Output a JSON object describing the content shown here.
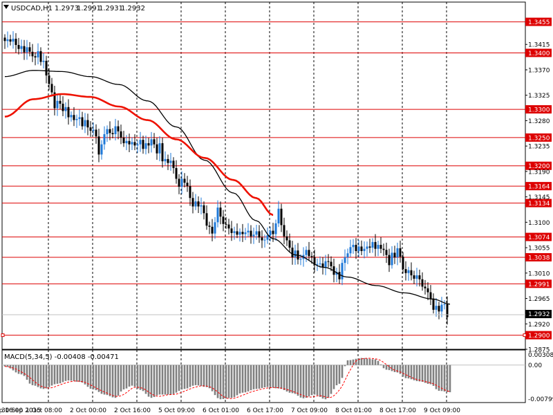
{
  "header": {
    "symbol_label": "USDCAD,H1",
    "ohlc": [
      "1.2973",
      "1.2991",
      "1.2931",
      "1.2932"
    ]
  },
  "colors": {
    "background": "#ffffff",
    "level_line": "#dd0000",
    "ma_fast": "#ee1100",
    "ma_slow": "#000000",
    "candle_up": "#1e78d8",
    "candle_down": "#000000",
    "macd_hist": "#808080",
    "macd_signal": "#ff0000",
    "current_price_bg": "#000000"
  },
  "price_scale": {
    "min": 1.2875,
    "max": 1.349,
    "ticks": [
      "1.3415",
      "1.3370",
      "1.3325",
      "1.3280",
      "1.3235",
      "1.3190",
      "1.3145",
      "1.3100",
      "1.3055",
      "1.3010",
      "1.2965",
      "1.2920",
      "1.2875"
    ]
  },
  "levels": [
    "1.3455",
    "1.3400",
    "1.3300",
    "1.3250",
    "1.3200",
    "1.3164",
    "1.3134",
    "1.3074",
    "1.3038",
    "1.2991",
    "1.2900"
  ],
  "current_price": "1.2932",
  "time_axis": {
    "labels": [
      "30 Sep 2015",
      "30 Sep 16:00",
      "1 Oct 08:00",
      "2 Oct 00:00",
      "2 Oct 16:00",
      "5 Oct 09:00",
      "6 Oct 01:00",
      "6 Oct 17:00",
      "7 Oct 09:00",
      "8 Oct 01:00",
      "8 Oct 17:00",
      "9 Oct 09:00"
    ],
    "separators": [
      0,
      16,
      32,
      48,
      64,
      80,
      96,
      112,
      128,
      144,
      160
    ]
  },
  "macd": {
    "label": "MACD(5,34,5) -0.00408 -0.00471",
    "ticks": [
      "0.00308",
      "0.00",
      "-0.00799"
    ],
    "min": -0.008,
    "max": 0.0032
  },
  "chart_data": {
    "type": "candlestick",
    "symbol": "USDCAD",
    "timeframe": "H1",
    "close": [
      1.3421,
      1.3424,
      1.342,
      1.3425,
      1.3414,
      1.3407,
      1.3412,
      1.3401,
      1.341,
      1.3402,
      1.3394,
      1.3392,
      1.3403,
      1.3384,
      1.3386,
      1.336,
      1.3345,
      1.333,
      1.3302,
      1.3315,
      1.331,
      1.3297,
      1.3304,
      1.3286,
      1.329,
      1.3281,
      1.3283,
      1.3286,
      1.327,
      1.3281,
      1.3268,
      1.3262,
      1.3264,
      1.3252,
      1.322,
      1.3238,
      1.3256,
      1.3265,
      1.3258,
      1.3256,
      1.327,
      1.3261,
      1.325,
      1.324,
      1.3244,
      1.3238,
      1.3242,
      1.3236,
      1.3238,
      1.3246,
      1.323,
      1.324,
      1.3236,
      1.3247,
      1.3238,
      1.3222,
      1.324,
      1.3208,
      1.3212,
      1.3205,
      1.3209,
      1.3196,
      1.3177,
      1.3163,
      1.3177,
      1.317,
      1.3164,
      1.3143,
      1.3128,
      1.3137,
      1.3128,
      1.313,
      1.3116,
      1.3094,
      1.3092,
      1.308,
      1.31,
      1.3126,
      1.311,
      1.3097,
      1.3096,
      1.3089,
      1.3081,
      1.3084,
      1.3078,
      1.3083,
      1.3079,
      1.3082,
      1.3085,
      1.3075,
      1.3078,
      1.3084,
      1.3073,
      1.3068,
      1.3069,
      1.3077,
      1.3085,
      1.3079,
      1.3098,
      1.3124,
      1.3095,
      1.3075,
      1.3068,
      1.3055,
      1.3038,
      1.305,
      1.3034,
      1.3035,
      1.3042,
      1.3051,
      1.304,
      1.3038,
      1.3025,
      1.3026,
      1.3027,
      1.302,
      1.3031,
      1.303,
      1.3022,
      1.3007,
      1.3012,
      1.2999,
      1.3028,
      1.3038,
      1.3045,
      1.3056,
      1.306,
      1.3049,
      1.3057,
      1.3049,
      1.3053,
      1.3057,
      1.3055,
      1.3065,
      1.3053,
      1.306,
      1.3053,
      1.3051,
      1.3042,
      1.3024,
      1.3046,
      1.3038,
      1.3054,
      1.3039,
      1.3017,
      1.301,
      1.3015,
      1.3006,
      1.3,
      1.3006,
      1.2999,
      1.2986,
      1.2983,
      1.2976,
      1.2965,
      1.2945,
      1.2952,
      1.2942,
      1.2954,
      1.2955,
      1.2932
    ],
    "price_levels": [
      1.3455,
      1.34,
      1.33,
      1.325,
      1.32,
      1.3164,
      1.3134,
      1.3074,
      1.3038,
      1.2991,
      1.29
    ],
    "ma_fast_anchors": [
      [
        0,
        1.3287
      ],
      [
        25,
        1.3318
      ],
      [
        50,
        1.3327
      ],
      [
        75,
        1.3322
      ],
      [
        100,
        1.3305
      ],
      [
        125,
        1.3281
      ],
      [
        150,
        1.3247
      ],
      [
        175,
        1.3214
      ],
      [
        200,
        1.3175
      ],
      [
        220,
        1.3143
      ],
      [
        235,
        1.3113
      ]
    ],
    "ma_slow_anchors": [
      [
        0,
        1.3358
      ],
      [
        25,
        1.3369
      ],
      [
        50,
        1.3367
      ],
      [
        75,
        1.3358
      ],
      [
        100,
        1.3344
      ],
      [
        125,
        1.3315
      ],
      [
        150,
        1.3269
      ],
      [
        175,
        1.321
      ],
      [
        200,
        1.3152
      ],
      [
        220,
        1.3103
      ],
      [
        235,
        1.3071
      ],
      [
        255,
        1.3042
      ],
      [
        280,
        1.302
      ],
      [
        300,
        1.3003
      ],
      [
        325,
        1.2988
      ],
      [
        350,
        1.2975
      ],
      [
        375,
        1.2964
      ],
      [
        390,
        1.2955
      ]
    ],
    "macd_anchors": [
      [
        0,
        -0.0003
      ],
      [
        20,
        -0.002
      ],
      [
        35,
        -0.0043
      ],
      [
        50,
        -0.0051
      ],
      [
        65,
        -0.004
      ],
      [
        80,
        -0.0033
      ],
      [
        95,
        -0.0036
      ],
      [
        110,
        -0.0052
      ],
      [
        125,
        -0.0063
      ],
      [
        140,
        -0.007
      ],
      [
        150,
        -0.0052
      ],
      [
        160,
        -0.0044
      ],
      [
        170,
        -0.0053
      ],
      [
        185,
        -0.007
      ],
      [
        195,
        -0.0063
      ],
      [
        210,
        -0.0063
      ],
      [
        225,
        -0.0051
      ],
      [
        240,
        -0.0043
      ],
      [
        255,
        -0.0047
      ],
      [
        270,
        -0.0073
      ],
      [
        285,
        -0.007
      ],
      [
        300,
        -0.0059
      ],
      [
        315,
        -0.0051
      ],
      [
        330,
        -0.0047
      ],
      [
        345,
        -0.005
      ],
      [
        360,
        -0.006
      ],
      [
        375,
        -0.0071
      ],
      [
        390,
        -0.0063
      ],
      [
        405,
        -0.0073
      ],
      [
        420,
        -0.004
      ],
      [
        430,
        0.001
      ],
      [
        450,
        0.0015
      ],
      [
        465,
        0.0012
      ],
      [
        480,
        -0.001
      ],
      [
        495,
        -0.0016
      ],
      [
        505,
        -0.0028
      ],
      [
        520,
        -0.0035
      ],
      [
        535,
        -0.0041
      ],
      [
        545,
        -0.0055
      ],
      [
        560,
        -0.0058
      ]
    ]
  }
}
